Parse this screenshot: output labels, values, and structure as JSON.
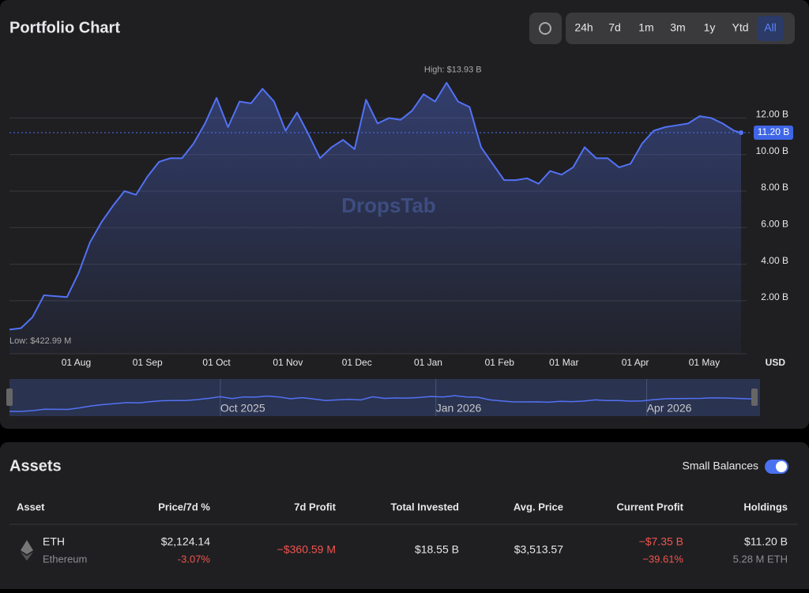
{
  "header": {
    "title": "Portfolio Chart",
    "ranges": [
      "24h",
      "7d",
      "1m",
      "3m",
      "1y",
      "Ytd",
      "All"
    ],
    "selected": "All"
  },
  "chart_data": {
    "type": "line",
    "color": "#5272f5",
    "x": [
      "2025-07-03",
      "2025-07-08",
      "2025-07-13",
      "2025-07-18",
      "2025-07-23",
      "2025-07-28",
      "2025-08-02",
      "2025-08-07",
      "2025-08-12",
      "2025-08-17",
      "2025-08-22",
      "2025-08-27",
      "2025-09-01",
      "2025-09-06",
      "2025-09-11",
      "2025-09-16",
      "2025-09-21",
      "2025-09-26",
      "2025-10-01",
      "2025-10-06",
      "2025-10-11",
      "2025-10-16",
      "2025-10-21",
      "2025-10-26",
      "2025-10-31",
      "2025-11-05",
      "2025-11-10",
      "2025-11-15",
      "2025-11-20",
      "2025-11-25",
      "2025-11-30",
      "2025-12-05",
      "2025-12-10",
      "2025-12-15",
      "2025-12-20",
      "2025-12-25",
      "2025-12-30",
      "2026-01-04",
      "2026-01-09",
      "2026-01-14",
      "2026-01-19",
      "2026-01-24",
      "2026-01-29",
      "2026-02-03",
      "2026-02-08",
      "2026-02-13",
      "2026-02-18",
      "2026-02-23",
      "2026-02-28",
      "2026-03-05",
      "2026-03-10",
      "2026-03-15",
      "2026-03-20",
      "2026-03-25",
      "2026-03-30",
      "2026-04-04",
      "2026-04-09",
      "2026-04-14",
      "2026-04-19",
      "2026-04-24",
      "2026-04-29",
      "2026-05-04",
      "2026-05-09",
      "2026-05-14",
      "2026-05-17"
    ],
    "values": [
      0.423,
      0.5,
      1.1,
      2.3,
      2.25,
      2.2,
      3.5,
      5.2,
      6.3,
      7.2,
      8.0,
      7.8,
      8.8,
      9.6,
      9.8,
      9.8,
      10.6,
      11.7,
      13.1,
      11.5,
      12.9,
      12.8,
      13.6,
      12.9,
      11.3,
      12.3,
      11.1,
      9.8,
      10.4,
      10.8,
      10.3,
      13.0,
      11.7,
      12.0,
      11.9,
      12.4,
      13.3,
      12.9,
      13.93,
      12.9,
      12.6,
      10.4,
      9.5,
      8.6,
      8.6,
      8.7,
      8.4,
      9.1,
      8.9,
      9.3,
      10.4,
      9.8,
      9.8,
      9.3,
      9.5,
      10.6,
      11.3,
      11.5,
      11.6,
      11.7,
      12.1,
      12.0,
      11.7,
      11.3,
      11.2
    ],
    "ylim": [
      -0.9,
      15
    ],
    "yticks": [
      {
        "value": 2,
        "label": "2.00 B"
      },
      {
        "value": 4,
        "label": "4.00 B"
      },
      {
        "value": 6,
        "label": "6.00 B"
      },
      {
        "value": 8,
        "label": "8.00 B"
      },
      {
        "value": 10,
        "label": "10.00 B"
      },
      {
        "value": 12,
        "label": "12.00 B"
      }
    ],
    "xticks": [
      {
        "value": "2025-08-01",
        "label": "01 Aug"
      },
      {
        "value": "2025-09-01",
        "label": "01 Sep"
      },
      {
        "value": "2025-10-01",
        "label": "01 Oct"
      },
      {
        "value": "2025-11-01",
        "label": "01 Nov"
      },
      {
        "value": "2025-12-01",
        "label": "01 Dec"
      },
      {
        "value": "2026-01-01",
        "label": "01 Jan"
      },
      {
        "value": "2026-02-01",
        "label": "01 Feb"
      },
      {
        "value": "2026-03-01",
        "label": "01 Mar"
      },
      {
        "value": "2026-04-01",
        "label": "01 Apr"
      },
      {
        "value": "2026-05-01",
        "label": "01 May"
      }
    ],
    "y_unit": "USD",
    "high_label": "High: $13.93 B",
    "low_label": "Low: $422.99 M",
    "current": {
      "value": 11.2,
      "label": "11.20 B"
    },
    "watermark": "DropsTab",
    "grid": true,
    "navigator_ticks": [
      {
        "value": "2025-10-01",
        "label": "Oct 2025"
      },
      {
        "value": "2026-01-01",
        "label": "Jan 2026"
      },
      {
        "value": "2026-04-01",
        "label": "Apr 2026"
      }
    ]
  },
  "assets": {
    "title": "Assets",
    "toggle": "Small Balances",
    "columns": [
      "Asset",
      "Price/7d %",
      "7d Profit",
      "Total Invested",
      "Avg. Price",
      "Current Profit",
      "Holdings"
    ],
    "rows": [
      {
        "symbol": "ETH",
        "name": "Ethereum",
        "price": "$2,124.14",
        "change": "-3.07%",
        "profit7d": "−$360.59 M",
        "invested": "$18.55 B",
        "avg": "$3,513.57",
        "current": "−$7.35 B",
        "current_pct": "−39.61%",
        "holdings": "$11.20 B",
        "holdings_qty": "5.28 M ETH"
      }
    ]
  }
}
